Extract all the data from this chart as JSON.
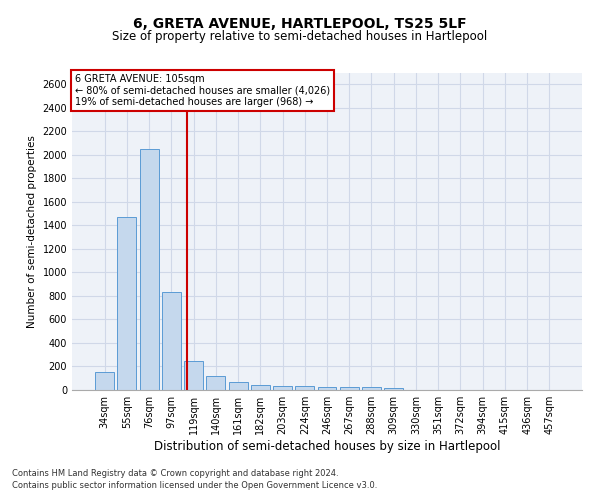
{
  "title": "6, GRETA AVENUE, HARTLEPOOL, TS25 5LF",
  "subtitle": "Size of property relative to semi-detached houses in Hartlepool",
  "xlabel": "Distribution of semi-detached houses by size in Hartlepool",
  "ylabel": "Number of semi-detached properties",
  "categories": [
    "34sqm",
    "55sqm",
    "76sqm",
    "97sqm",
    "119sqm",
    "140sqm",
    "161sqm",
    "182sqm",
    "203sqm",
    "224sqm",
    "246sqm",
    "267sqm",
    "288sqm",
    "309sqm",
    "330sqm",
    "351sqm",
    "372sqm",
    "394sqm",
    "415sqm",
    "436sqm",
    "457sqm"
  ],
  "values": [
    150,
    1470,
    2050,
    830,
    250,
    115,
    65,
    45,
    30,
    30,
    28,
    28,
    22,
    15,
    0,
    0,
    0,
    0,
    0,
    0,
    0
  ],
  "bar_color": "#c5d8ed",
  "bar_edgecolor": "#5b9bd5",
  "grid_color": "#d0d8e8",
  "background_color": "#eef2f8",
  "annotation_box_text1": "6 GRETA AVENUE: 105sqm",
  "annotation_box_text2": "← 80% of semi-detached houses are smaller (4,026)",
  "annotation_box_text3": "19% of semi-detached houses are larger (968) →",
  "vline_position": 3.72,
  "vline_color": "#cc0000",
  "ylim": [
    0,
    2700
  ],
  "yticks": [
    0,
    200,
    400,
    600,
    800,
    1000,
    1200,
    1400,
    1600,
    1800,
    2000,
    2200,
    2400,
    2600
  ],
  "footnote1": "Contains HM Land Registry data © Crown copyright and database right 2024.",
  "footnote2": "Contains public sector information licensed under the Open Government Licence v3.0.",
  "title_fontsize": 10,
  "subtitle_fontsize": 8.5,
  "xlabel_fontsize": 8.5,
  "ylabel_fontsize": 7.5,
  "tick_fontsize": 7,
  "footnote_fontsize": 6
}
